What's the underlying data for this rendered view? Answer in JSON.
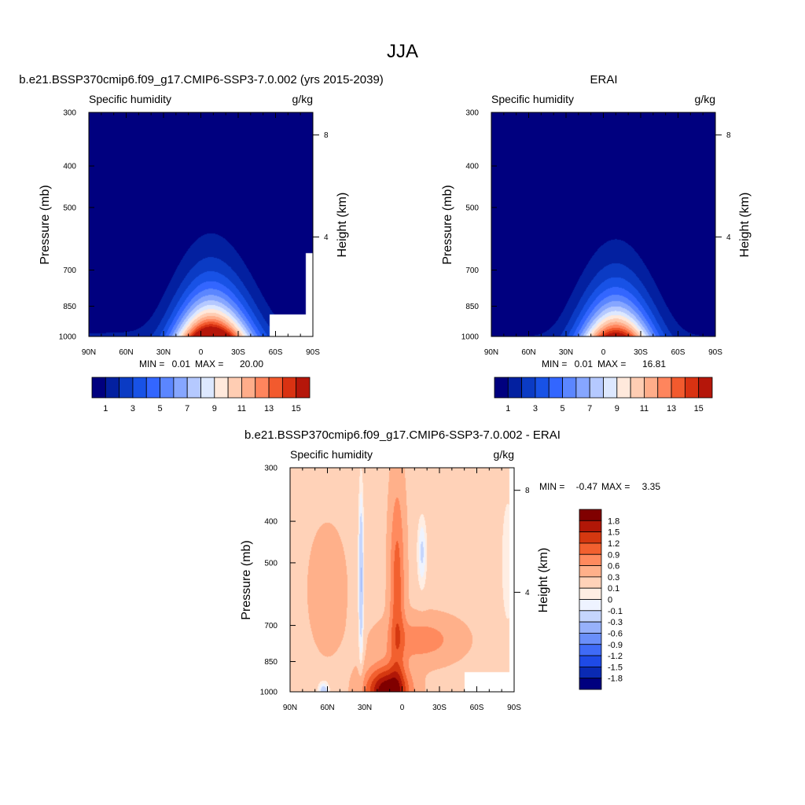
{
  "figure": {
    "title": "JJA"
  },
  "chart_data": [
    {
      "type": "heatmap",
      "title": "b.e21.BSSP370cmip6.f09_g17.CMIP6-SSP3-7.0.002 (yrs 2015-2039)",
      "left_label": "Specific humidity",
      "units": "g/kg",
      "ylabel": "Pressure (mb)",
      "ylabel_right": "Height (km)",
      "x_ticks": [
        "90N",
        "60N",
        "30N",
        "0",
        "30S",
        "60S",
        "90S"
      ],
      "y_ticks": [
        "300",
        "400",
        "500",
        "700",
        "850",
        "1000"
      ],
      "y_right_ticks": [
        "8",
        "4"
      ],
      "min_label": "MIN =",
      "min_value": "0.01",
      "max_label": "MAX =",
      "max_value": "20.00",
      "levels": [
        1,
        2,
        3,
        4,
        5,
        6,
        7,
        8,
        9,
        10,
        11,
        12,
        13,
        14,
        15
      ],
      "colorbar_labels": [
        "1",
        "3",
        "5",
        "7",
        "9",
        "11",
        "13",
        "15"
      ],
      "field": {
        "peak_lat": -8,
        "peak_value": 20.0,
        "mask_lat_min": -55
      }
    },
    {
      "type": "heatmap",
      "title": "ERAI",
      "left_label": "Specific humidity",
      "units": "g/kg",
      "ylabel": "Pressure (mb)",
      "ylabel_right": "Height (km)",
      "x_ticks": [
        "90N",
        "60N",
        "30N",
        "0",
        "30S",
        "60S",
        "90S"
      ],
      "y_ticks": [
        "300",
        "400",
        "500",
        "700",
        "850",
        "1000"
      ],
      "y_right_ticks": [
        "8",
        "4"
      ],
      "min_label": "MIN =",
      "min_value": "0.01",
      "max_label": "MAX =",
      "max_value": "16.81",
      "levels": [
        1,
        2,
        3,
        4,
        5,
        6,
        7,
        8,
        9,
        10,
        11,
        12,
        13,
        14,
        15
      ],
      "colorbar_labels": [
        "1",
        "3",
        "5",
        "7",
        "9",
        "11",
        "13",
        "15"
      ],
      "field": {
        "peak_lat": -10,
        "peak_value": 16.81
      }
    },
    {
      "type": "heatmap",
      "title": "b.e21.BSSP370cmip6.f09_g17.CMIP6-SSP3-7.0.002 - ERAI",
      "left_label": "Specific humidity",
      "units": "g/kg",
      "ylabel": "Pressure (mb)",
      "ylabel_right": "Height (km)",
      "x_ticks": [
        "90N",
        "60N",
        "30N",
        "0",
        "30S",
        "60S",
        "90S"
      ],
      "y_ticks": [
        "300",
        "400",
        "500",
        "700",
        "850",
        "1000"
      ],
      "y_right_ticks": [
        "8",
        "4"
      ],
      "min_label": "MIN =",
      "min_value": "-0.47",
      "max_label": "MAX =",
      "max_value": "3.35",
      "levels": [
        -1.8,
        -1.5,
        -1.2,
        -0.9,
        -0.6,
        -0.3,
        -0.1,
        0,
        0.1,
        0.3,
        0.6,
        0.9,
        1.2,
        1.5,
        1.8
      ],
      "colorbar_labels": [
        "1.8",
        "1.5",
        "1.2",
        "0.9",
        "0.6",
        "0.3",
        "0.1",
        "0",
        "-0.1",
        "-0.3",
        "-0.6",
        "-0.9",
        "-1.2",
        "-1.5",
        "-1.8"
      ],
      "field": {
        "mask_lat_min": -50
      }
    }
  ],
  "colors": {
    "positive_palette": [
      "#00007f",
      "#0320a0",
      "#0b3bc4",
      "#1852e6",
      "#3366ff",
      "#5b86ff",
      "#86a6ff",
      "#b5c9ff",
      "#dde8ff",
      "#ffe9dc",
      "#ffcdb3",
      "#ffad8a",
      "#ff855d",
      "#f25a2e",
      "#d93212",
      "#b5160a",
      "#800000"
    ],
    "diff_palette": [
      "#00007f",
      "#0a2ab3",
      "#1e4ae6",
      "#3f6bf7",
      "#6a8ffa",
      "#97b1fb",
      "#c5d5fd",
      "#eef3ff",
      "#ffeee3",
      "#ffd2b8",
      "#ffb08a",
      "#ff8a5e",
      "#f2602f",
      "#d53810",
      "#b11707",
      "#800000"
    ]
  }
}
